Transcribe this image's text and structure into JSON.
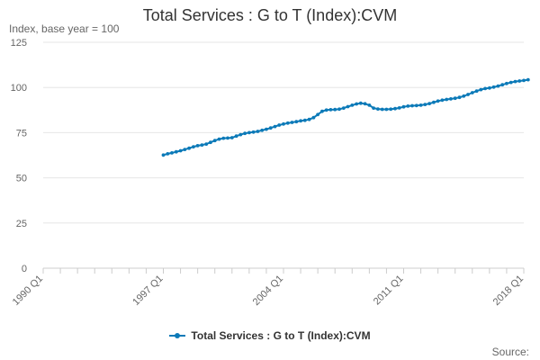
{
  "chart_data": {
    "type": "line",
    "title": "Total Services : G to T (Index):CVM",
    "subtitle": "Index, base year = 100",
    "ylim": [
      0,
      125
    ],
    "yticks": [
      0,
      25,
      50,
      75,
      100,
      125
    ],
    "xticks": [
      {
        "label": "1990 Q1",
        "index": 0
      },
      {
        "label": "1997 Q1",
        "index": 28
      },
      {
        "label": "2004 Q1",
        "index": 56
      },
      {
        "label": "2011 Q1",
        "index": 84
      },
      {
        "label": "2018 Q1",
        "index": 112
      }
    ],
    "x_count": 113,
    "series": [
      {
        "name": "Total Services : G to T (Index):CVM",
        "color": "#0c7ab8",
        "start_index": 28,
        "values": [
          62.6,
          63.3,
          63.8,
          64.4,
          65.0,
          65.7,
          66.4,
          67.2,
          67.8,
          68.2,
          68.7,
          69.6,
          70.6,
          71.4,
          71.9,
          72.0,
          72.2,
          73.1,
          73.9,
          74.6,
          75.0,
          75.3,
          75.7,
          76.3,
          76.9,
          77.6,
          78.4,
          79.2,
          79.8,
          80.3,
          80.7,
          81.1,
          81.5,
          81.8,
          82.3,
          83.3,
          85.0,
          86.8,
          87.5,
          87.7,
          87.8,
          88.0,
          88.6,
          89.4,
          90.2,
          90.9,
          91.3,
          91.0,
          90.2,
          88.6,
          88.1,
          87.9,
          87.9,
          88.0,
          88.3,
          88.7,
          89.3,
          89.7,
          89.9,
          90.0,
          90.2,
          90.6,
          91.1,
          91.8,
          92.5,
          93.0,
          93.4,
          93.7,
          94.0,
          94.5,
          95.2,
          96.1,
          97.1,
          98.0,
          98.8,
          99.4,
          99.7,
          100.2,
          100.8,
          101.5,
          102.2,
          102.8,
          103.3,
          103.6,
          103.9,
          104.3
        ]
      }
    ]
  },
  "legend_label": "Total Services : G to T (Index):CVM",
  "source_label": "Source:"
}
